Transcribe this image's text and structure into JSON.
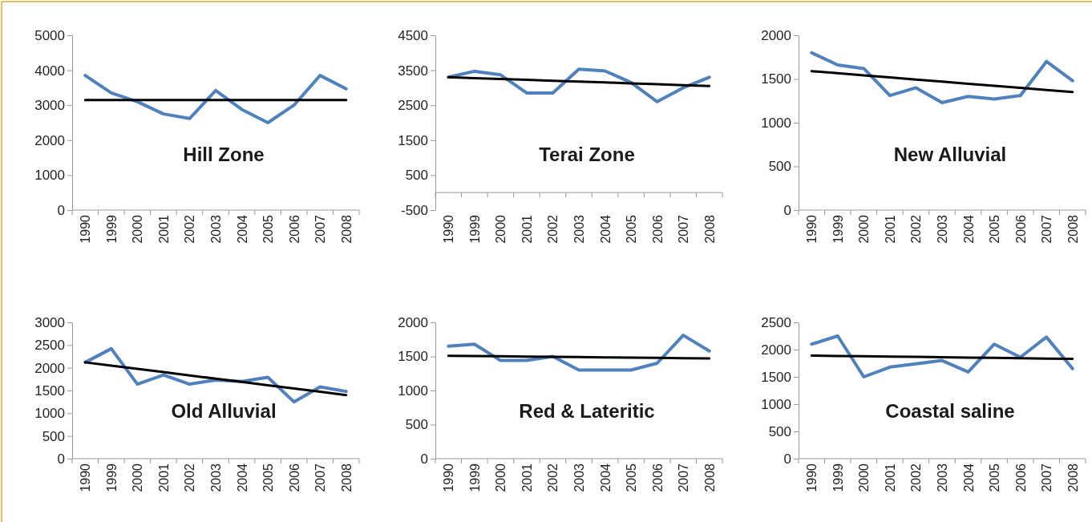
{
  "chart_data": [
    {
      "type": "line",
      "title": "Hill Zone",
      "categories": [
        "1990",
        "1999",
        "2000",
        "2001",
        "2002",
        "2003",
        "2004",
        "2005",
        "2006",
        "2007",
        "2008"
      ],
      "ylim": [
        0,
        5000
      ],
      "yticks": [
        0,
        1000,
        2000,
        3000,
        4000,
        5000
      ],
      "series": [
        {
          "color": "#4f81bd",
          "values": [
            3850,
            3350,
            3100,
            2750,
            2620,
            3420,
            2880,
            2500,
            3000,
            3850,
            3470
          ]
        },
        {
          "type": "line",
          "color": "#000000",
          "values": [
            3150,
            3150,
            3150,
            3150,
            3150,
            3150,
            3150,
            3150,
            3150,
            3150,
            3150
          ]
        }
      ]
    },
    {
      "type": "line",
      "title": "Terai Zone",
      "categories": [
        "1990",
        "1999",
        "2000",
        "2001",
        "2002",
        "2003",
        "2004",
        "2005",
        "2006",
        "2007",
        "2008"
      ],
      "ylim": [
        -500,
        4500
      ],
      "yticks": [
        -500,
        500,
        1500,
        2500,
        3500,
        4500
      ],
      "series": [
        {
          "color": "#4f81bd",
          "values": [
            3300,
            3470,
            3370,
            2850,
            2850,
            3530,
            3480,
            3150,
            2600,
            3000,
            3300
          ]
        },
        {
          "type": "line",
          "color": "#000000",
          "values": [
            3300,
            3275,
            3250,
            3225,
            3200,
            3175,
            3150,
            3125,
            3100,
            3075,
            3050
          ]
        }
      ]
    },
    {
      "type": "line",
      "title": "New Alluvial",
      "categories": [
        "1990",
        "1999",
        "2000",
        "2001",
        "2002",
        "2003",
        "2004",
        "2005",
        "2006",
        "2007",
        "2008"
      ],
      "ylim": [
        0,
        2000
      ],
      "yticks": [
        0,
        500,
        1000,
        1500,
        2000
      ],
      "series": [
        {
          "color": "#4f81bd",
          "values": [
            1800,
            1660,
            1620,
            1310,
            1400,
            1230,
            1300,
            1270,
            1310,
            1700,
            1480
          ]
        },
        {
          "type": "line",
          "color": "#000000",
          "values": [
            1590,
            1566,
            1542,
            1518,
            1494,
            1470,
            1446,
            1422,
            1398,
            1374,
            1350
          ]
        }
      ]
    },
    {
      "type": "line",
      "title": "Old Alluvial",
      "categories": [
        "1990",
        "1999",
        "2000",
        "2001",
        "2002",
        "2003",
        "2004",
        "2005",
        "2006",
        "2007",
        "2008"
      ],
      "ylim": [
        0,
        3000
      ],
      "yticks": [
        0,
        500,
        1000,
        1500,
        2000,
        2500,
        3000
      ],
      "series": [
        {
          "color": "#4f81bd",
          "values": [
            2120,
            2420,
            1640,
            1840,
            1640,
            1730,
            1700,
            1790,
            1250,
            1580,
            1480
          ]
        },
        {
          "type": "line",
          "color": "#000000",
          "values": [
            2120,
            2048,
            1976,
            1904,
            1832,
            1760,
            1688,
            1616,
            1544,
            1472,
            1400
          ]
        }
      ]
    },
    {
      "type": "line",
      "title": "Red & Lateritic",
      "categories": [
        "1990",
        "1999",
        "2000",
        "2001",
        "2002",
        "2003",
        "2004",
        "2005",
        "2006",
        "2007",
        "2008"
      ],
      "ylim": [
        0,
        2000
      ],
      "yticks": [
        0,
        500,
        1000,
        1500,
        2000
      ],
      "series": [
        {
          "color": "#4f81bd",
          "values": [
            1650,
            1680,
            1440,
            1440,
            1500,
            1300,
            1300,
            1300,
            1400,
            1810,
            1580
          ]
        },
        {
          "type": "line",
          "color": "#000000",
          "values": [
            1510,
            1506,
            1502,
            1498,
            1494,
            1490,
            1486,
            1482,
            1478,
            1474,
            1470
          ]
        }
      ]
    },
    {
      "type": "line",
      "title": "Coastal saline",
      "categories": [
        "1990",
        "1999",
        "2000",
        "2001",
        "2002",
        "2003",
        "2004",
        "2005",
        "2006",
        "2007",
        "2008"
      ],
      "ylim": [
        0,
        2500
      ],
      "yticks": [
        0,
        500,
        1000,
        1500,
        2000,
        2500
      ],
      "series": [
        {
          "color": "#4f81bd",
          "values": [
            2100,
            2250,
            1500,
            1680,
            1740,
            1800,
            1590,
            2100,
            1860,
            2230,
            1650
          ]
        },
        {
          "type": "line",
          "color": "#000000",
          "values": [
            1890,
            1884,
            1878,
            1872,
            1866,
            1860,
            1854,
            1848,
            1842,
            1836,
            1830
          ]
        }
      ]
    }
  ]
}
